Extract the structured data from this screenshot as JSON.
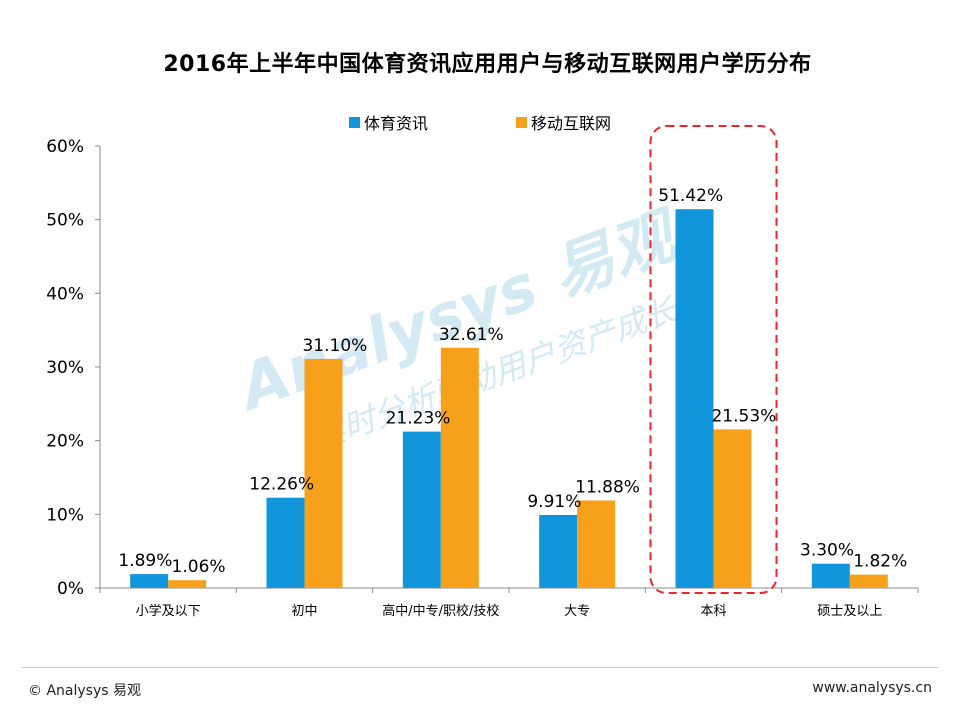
{
  "colors": {
    "series1": "#1296DB",
    "series2": "#F7A11A",
    "highlight": "#E8262B"
  },
  "watermark": {
    "brand": "Analysys 易观",
    "slogan": "实时分析驱动用户资产成长"
  },
  "footer": {
    "left": "© Analysys 易观",
    "right": "www.analysys.cn"
  },
  "chart_data": {
    "type": "bar",
    "title": "2016年上半年中国体育资讯应用用户与移动互联网用户学历分布",
    "categories": [
      "小学及以下",
      "初中",
      "高中/中专/职校/技校",
      "大专",
      "本科",
      "硕士及以上"
    ],
    "series": [
      {
        "name": "体育资讯",
        "values": [
          1.89,
          12.26,
          21.23,
          9.91,
          51.42,
          3.3
        ],
        "labels": [
          "1.89%",
          "12.26%",
          "21.23%",
          "9.91%",
          "51.42%",
          "3.30%"
        ]
      },
      {
        "name": "移动互联网",
        "values": [
          1.06,
          31.1,
          32.61,
          11.88,
          21.53,
          1.82
        ],
        "labels": [
          "1.06%",
          "31.10%",
          "32.61%",
          "11.88%",
          "21.53%",
          "1.82%"
        ]
      }
    ],
    "ylim": [
      0,
      60
    ],
    "yticks": [
      0,
      10,
      20,
      30,
      40,
      50,
      60
    ],
    "ytick_labels": [
      "0%",
      "10%",
      "20%",
      "30%",
      "40%",
      "50%",
      "60%"
    ],
    "xlabel": "",
    "ylabel": "",
    "legend_position": "top-center",
    "highlighted_category": "本科"
  }
}
